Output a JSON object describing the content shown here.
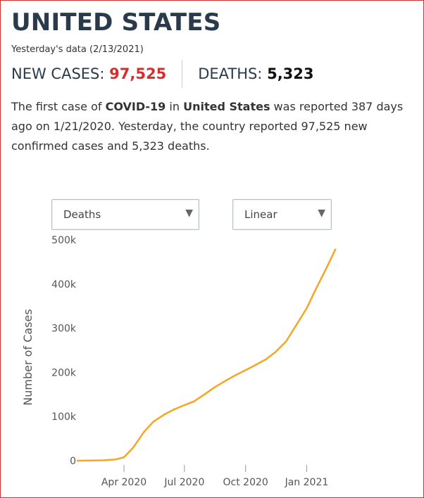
{
  "header": {
    "title": "UNITED STATES",
    "subtitle": "Yesterday's data (2/13/2021)"
  },
  "stats": {
    "new_cases_label": "NEW CASES:",
    "new_cases_value": "97,525",
    "deaths_label": "DEATHS:",
    "deaths_value": "5,323"
  },
  "summary": {
    "part1": "The first case of ",
    "disease": "COVID-19",
    "part2": " in ",
    "country": "United States",
    "part3": " was reported 387 days ago on 1/21/2020. Yesterday, the country reported 97,525 new confirmed cases and 5,323 deaths."
  },
  "controls": {
    "metric_select": "Deaths",
    "scale_select": "Linear",
    "caret": "▼"
  },
  "colors": {
    "line": "#f5a623",
    "new_cases_value": "#d32f2f",
    "title": "#2b3a4a"
  },
  "chart_data": {
    "type": "line",
    "ylabel": "Number of Cases",
    "xlabel": "",
    "ylim": [
      0,
      500000
    ],
    "xlim": [
      "2020-01-22",
      "2021-02-13"
    ],
    "y_ticks": [
      {
        "value": 0,
        "label": "0"
      },
      {
        "value": 100000,
        "label": "100k"
      },
      {
        "value": 200000,
        "label": "200k"
      },
      {
        "value": 300000,
        "label": "300k"
      },
      {
        "value": 400000,
        "label": "400k"
      },
      {
        "value": 500000,
        "label": "500k"
      }
    ],
    "x_ticks": [
      {
        "date": "2020-04-01",
        "label": "Apr 2020"
      },
      {
        "date": "2020-07-01",
        "label": "Jul 2020"
      },
      {
        "date": "2020-10-01",
        "label": "Oct 2020"
      },
      {
        "date": "2021-01-01",
        "label": "Jan 2021"
      }
    ],
    "grid": false,
    "legend": "none",
    "series": [
      {
        "points": [
          [
            "2020-01-22",
            0
          ],
          [
            "2020-03-01",
            1000
          ],
          [
            "2020-03-20",
            3000
          ],
          [
            "2020-04-01",
            8000
          ],
          [
            "2020-04-15",
            30000
          ],
          [
            "2020-05-01",
            65000
          ],
          [
            "2020-05-15",
            88000
          ],
          [
            "2020-06-01",
            105000
          ],
          [
            "2020-06-15",
            116000
          ],
          [
            "2020-07-01",
            126000
          ],
          [
            "2020-07-15",
            134000
          ],
          [
            "2020-08-01",
            151000
          ],
          [
            "2020-08-15",
            166000
          ],
          [
            "2020-09-01",
            181000
          ],
          [
            "2020-09-15",
            193000
          ],
          [
            "2020-10-01",
            205000
          ],
          [
            "2020-10-15",
            216000
          ],
          [
            "2020-11-01",
            230000
          ],
          [
            "2020-11-15",
            246000
          ],
          [
            "2020-12-01",
            270000
          ],
          [
            "2020-12-15",
            304000
          ],
          [
            "2021-01-01",
            345000
          ],
          [
            "2021-01-15",
            389000
          ],
          [
            "2021-02-01",
            440000
          ],
          [
            "2021-02-13",
            478000
          ]
        ]
      }
    ]
  }
}
